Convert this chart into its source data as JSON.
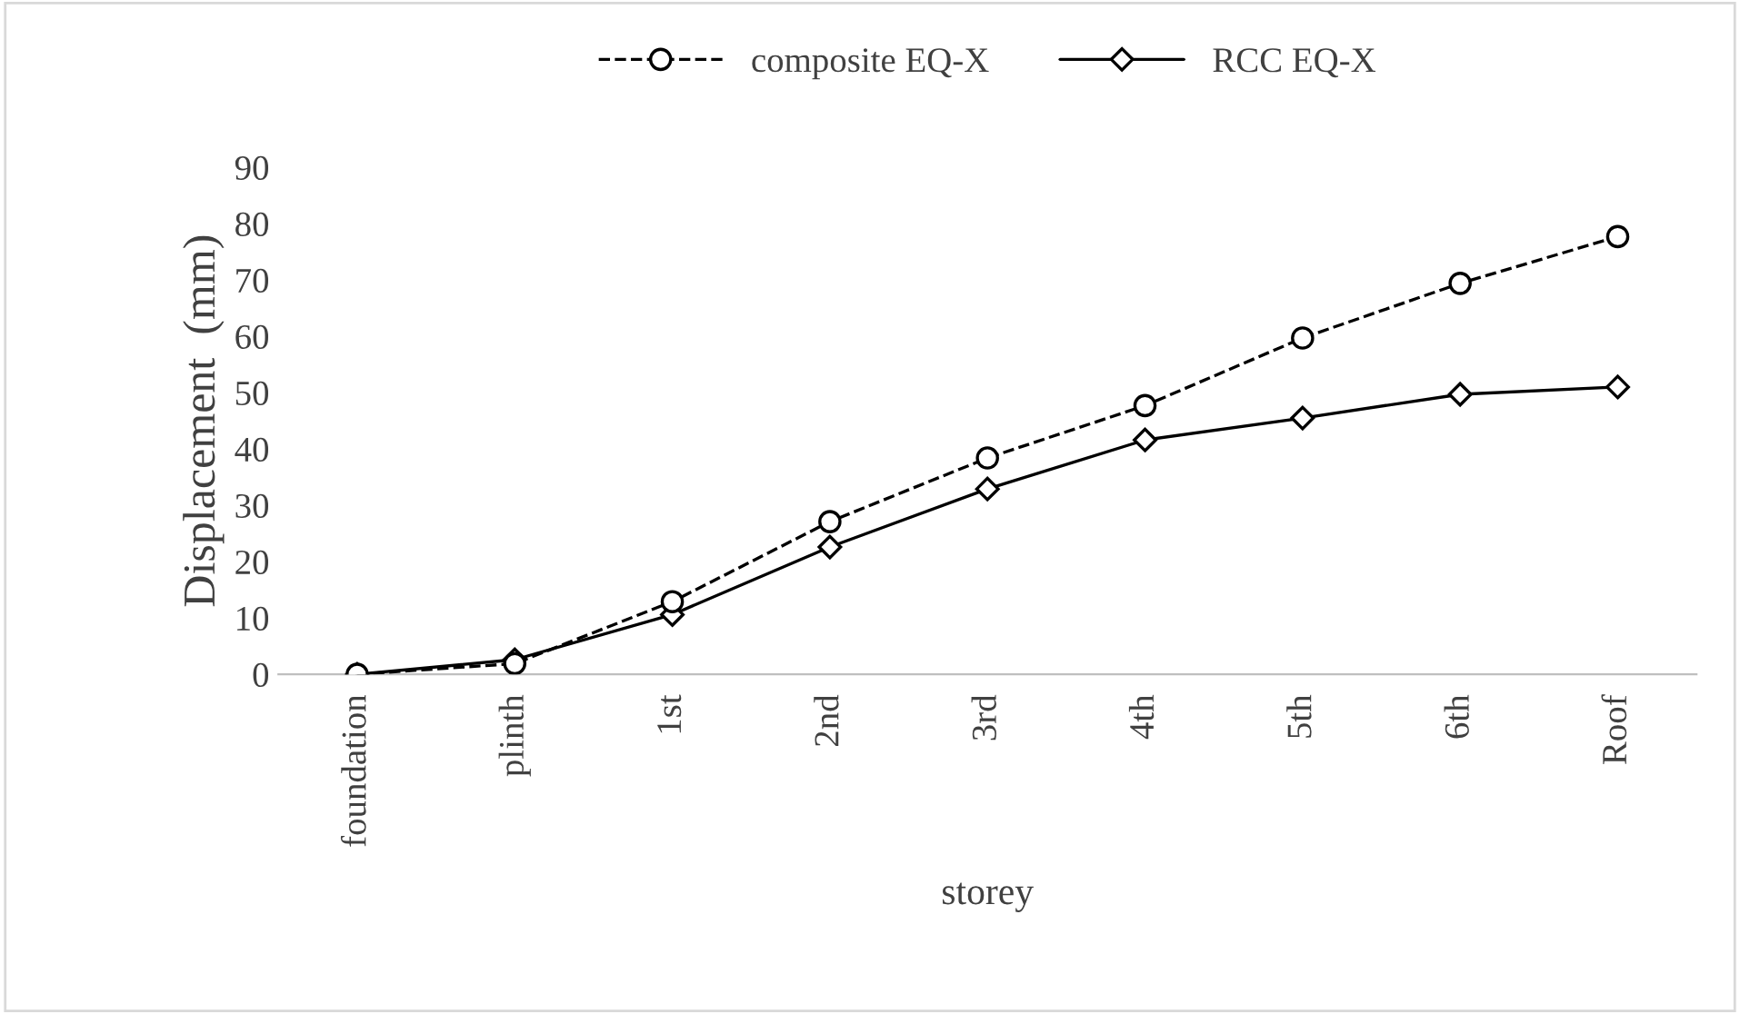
{
  "chart_data": {
    "type": "line",
    "xlabel": "storey",
    "ylabel": "Displacement  (mm)",
    "categories": [
      "foundation",
      "plinth",
      "1st",
      "2nd",
      "3rd",
      "4th",
      "5th",
      "6th",
      "Roof"
    ],
    "series": [
      {
        "name": "composite EQ-X",
        "color": "#000000",
        "marker": "circle",
        "line_style": "dashed",
        "values": [
          0,
          1.9,
          12.9,
          27.1,
          38.4,
          47.7,
          59.7,
          69.4,
          77.7
        ]
      },
      {
        "name": "RCC EQ-X",
        "color": "#000000",
        "marker": "diamond",
        "line_style": "solid",
        "values": [
          0,
          2.6,
          10.6,
          22.6,
          32.9,
          41.6,
          45.5,
          49.7,
          51.0
        ]
      }
    ],
    "ylim": [
      0,
      90
    ],
    "yticks": [
      0,
      10,
      20,
      30,
      40,
      50,
      60,
      70,
      80,
      90
    ],
    "grid": false,
    "legend": "top"
  }
}
